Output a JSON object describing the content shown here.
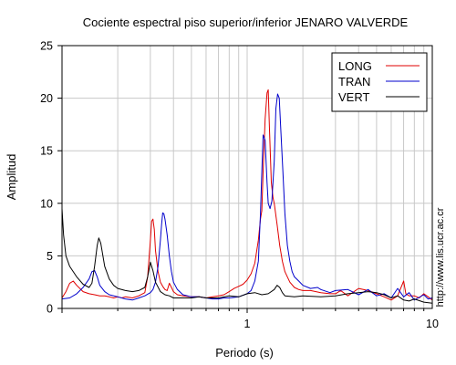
{
  "chart_data": {
    "type": "line",
    "title": "Cociente espectral piso superior/inferior  JENARO VALVERDE",
    "xlabel": "Periodo (s)",
    "ylabel": "Amplitud",
    "xscale": "log",
    "xlim": [
      0.1,
      10
    ],
    "ylim": [
      0,
      25
    ],
    "grid": true,
    "legend_position": "top-right",
    "x_tick_labels": [
      {
        "value": 1,
        "label": "1"
      },
      {
        "value": 10,
        "label": "10"
      }
    ],
    "y_tick_labels": [
      {
        "value": 0,
        "label": "0"
      },
      {
        "value": 5,
        "label": "5"
      },
      {
        "value": 10,
        "label": "10"
      },
      {
        "value": 15,
        "label": "15"
      },
      {
        "value": 20,
        "label": "20"
      },
      {
        "value": 25,
        "label": "25"
      }
    ],
    "series": [
      {
        "name": "LONG",
        "color": "#e00000",
        "points": [
          [
            0.1,
            1.0
          ],
          [
            0.105,
            1.6
          ],
          [
            0.11,
            2.4
          ],
          [
            0.115,
            2.6
          ],
          [
            0.12,
            2.2
          ],
          [
            0.13,
            1.6
          ],
          [
            0.14,
            1.4
          ],
          [
            0.15,
            1.3
          ],
          [
            0.16,
            1.2
          ],
          [
            0.17,
            1.2
          ],
          [
            0.18,
            1.1
          ],
          [
            0.19,
            1.0
          ],
          [
            0.2,
            1.1
          ],
          [
            0.21,
            1.0
          ],
          [
            0.22,
            1.1
          ],
          [
            0.24,
            1.0
          ],
          [
            0.26,
            1.2
          ],
          [
            0.28,
            1.5
          ],
          [
            0.29,
            3.0
          ],
          [
            0.3,
            6.5
          ],
          [
            0.305,
            8.3
          ],
          [
            0.31,
            8.5
          ],
          [
            0.315,
            7.5
          ],
          [
            0.32,
            5.5
          ],
          [
            0.33,
            3.5
          ],
          [
            0.34,
            2.5
          ],
          [
            0.35,
            2.1
          ],
          [
            0.36,
            1.8
          ],
          [
            0.37,
            1.7
          ],
          [
            0.38,
            2.4
          ],
          [
            0.39,
            2.0
          ],
          [
            0.4,
            1.6
          ],
          [
            0.42,
            1.3
          ],
          [
            0.45,
            1.2
          ],
          [
            0.5,
            1.1
          ],
          [
            0.55,
            1.1
          ],
          [
            0.6,
            1.0
          ],
          [
            0.65,
            1.1
          ],
          [
            0.7,
            1.2
          ],
          [
            0.75,
            1.3
          ],
          [
            0.8,
            1.6
          ],
          [
            0.85,
            1.9
          ],
          [
            0.9,
            2.1
          ],
          [
            0.95,
            2.3
          ],
          [
            1.0,
            2.7
          ],
          [
            1.05,
            3.3
          ],
          [
            1.1,
            4.3
          ],
          [
            1.15,
            6.5
          ],
          [
            1.18,
            8.5
          ],
          [
            1.2,
            9.3
          ],
          [
            1.22,
            13.0
          ],
          [
            1.25,
            18.0
          ],
          [
            1.28,
            20.5
          ],
          [
            1.3,
            20.8
          ],
          [
            1.32,
            17.0
          ],
          [
            1.35,
            12.0
          ],
          [
            1.38,
            10.5
          ],
          [
            1.4,
            10.0
          ],
          [
            1.45,
            8.0
          ],
          [
            1.5,
            6.0
          ],
          [
            1.55,
            4.5
          ],
          [
            1.6,
            3.5
          ],
          [
            1.7,
            2.5
          ],
          [
            1.8,
            2.0
          ],
          [
            1.9,
            1.8
          ],
          [
            2.0,
            1.7
          ],
          [
            2.2,
            1.7
          ],
          [
            2.5,
            1.5
          ],
          [
            2.8,
            1.4
          ],
          [
            3.0,
            1.4
          ],
          [
            3.2,
            1.7
          ],
          [
            3.5,
            1.2
          ],
          [
            4.0,
            1.9
          ],
          [
            4.5,
            1.7
          ],
          [
            5.0,
            1.4
          ],
          [
            5.5,
            1.1
          ],
          [
            6.0,
            0.8
          ],
          [
            6.5,
            1.2
          ],
          [
            7.0,
            2.6
          ],
          [
            7.2,
            1.4
          ],
          [
            7.5,
            1.2
          ],
          [
            8.0,
            1.2
          ],
          [
            8.5,
            1.0
          ],
          [
            9.0,
            1.4
          ],
          [
            9.5,
            1.1
          ],
          [
            10.0,
            0.8
          ]
        ]
      },
      {
        "name": "TRAN",
        "color": "#0000cc",
        "points": [
          [
            0.1,
            0.9
          ],
          [
            0.11,
            1.0
          ],
          [
            0.12,
            1.4
          ],
          [
            0.13,
            2.0
          ],
          [
            0.14,
            2.8
          ],
          [
            0.145,
            3.5
          ],
          [
            0.15,
            3.6
          ],
          [
            0.155,
            3.0
          ],
          [
            0.16,
            2.2
          ],
          [
            0.17,
            1.6
          ],
          [
            0.18,
            1.3
          ],
          [
            0.2,
            1.1
          ],
          [
            0.22,
            0.9
          ],
          [
            0.24,
            0.8
          ],
          [
            0.26,
            1.0
          ],
          [
            0.28,
            1.2
          ],
          [
            0.3,
            1.5
          ],
          [
            0.31,
            1.8
          ],
          [
            0.32,
            2.5
          ],
          [
            0.33,
            4.0
          ],
          [
            0.34,
            6.5
          ],
          [
            0.345,
            8.0
          ],
          [
            0.35,
            9.1
          ],
          [
            0.355,
            9.0
          ],
          [
            0.36,
            8.5
          ],
          [
            0.37,
            7.0
          ],
          [
            0.38,
            5.0
          ],
          [
            0.39,
            3.5
          ],
          [
            0.4,
            2.5
          ],
          [
            0.42,
            1.8
          ],
          [
            0.45,
            1.3
          ],
          [
            0.5,
            1.1
          ],
          [
            0.55,
            1.1
          ],
          [
            0.6,
            1.0
          ],
          [
            0.65,
            0.9
          ],
          [
            0.7,
            0.9
          ],
          [
            0.75,
            1.0
          ],
          [
            0.8,
            1.0
          ],
          [
            0.9,
            1.1
          ],
          [
            1.0,
            1.4
          ],
          [
            1.05,
            1.7
          ],
          [
            1.1,
            2.6
          ],
          [
            1.15,
            4.5
          ],
          [
            1.18,
            9.0
          ],
          [
            1.2,
            13.0
          ],
          [
            1.22,
            16.5
          ],
          [
            1.25,
            16.0
          ],
          [
            1.28,
            12.0
          ],
          [
            1.3,
            10.0
          ],
          [
            1.33,
            9.5
          ],
          [
            1.36,
            10.2
          ],
          [
            1.4,
            14.0
          ],
          [
            1.43,
            19.0
          ],
          [
            1.46,
            20.4
          ],
          [
            1.49,
            20.0
          ],
          [
            1.52,
            17.0
          ],
          [
            1.56,
            13.0
          ],
          [
            1.6,
            9.0
          ],
          [
            1.65,
            6.0
          ],
          [
            1.7,
            4.5
          ],
          [
            1.75,
            3.5
          ],
          [
            1.8,
            3.0
          ],
          [
            1.9,
            2.6
          ],
          [
            2.0,
            2.2
          ],
          [
            2.2,
            1.9
          ],
          [
            2.4,
            2.0
          ],
          [
            2.5,
            1.8
          ],
          [
            2.8,
            1.5
          ],
          [
            3.0,
            1.7
          ],
          [
            3.5,
            1.8
          ],
          [
            4.0,
            1.3
          ],
          [
            4.5,
            1.8
          ],
          [
            5.0,
            1.2
          ],
          [
            5.5,
            1.4
          ],
          [
            6.0,
            1.0
          ],
          [
            6.5,
            1.9
          ],
          [
            7.0,
            1.1
          ],
          [
            7.5,
            1.5
          ],
          [
            8.0,
            0.8
          ],
          [
            9.0,
            1.3
          ],
          [
            9.5,
            0.9
          ],
          [
            10.0,
            1.0
          ]
        ]
      },
      {
        "name": "VERT",
        "color": "#000000",
        "points": [
          [
            0.1,
            9.5
          ],
          [
            0.102,
            7.0
          ],
          [
            0.105,
            5.0
          ],
          [
            0.11,
            4.0
          ],
          [
            0.12,
            3.0
          ],
          [
            0.13,
            2.3
          ],
          [
            0.14,
            2.0
          ],
          [
            0.145,
            2.4
          ],
          [
            0.15,
            4.0
          ],
          [
            0.155,
            6.0
          ],
          [
            0.158,
            6.7
          ],
          [
            0.162,
            6.2
          ],
          [
            0.17,
            4.0
          ],
          [
            0.18,
            2.8
          ],
          [
            0.19,
            2.2
          ],
          [
            0.2,
            1.9
          ],
          [
            0.22,
            1.7
          ],
          [
            0.24,
            1.6
          ],
          [
            0.26,
            1.7
          ],
          [
            0.28,
            2.0
          ],
          [
            0.29,
            3.0
          ],
          [
            0.3,
            4.4
          ],
          [
            0.31,
            3.6
          ],
          [
            0.32,
            2.5
          ],
          [
            0.34,
            1.6
          ],
          [
            0.36,
            1.3
          ],
          [
            0.38,
            1.2
          ],
          [
            0.4,
            1.0
          ],
          [
            0.45,
            1.0
          ],
          [
            0.5,
            1.0
          ],
          [
            0.55,
            1.1
          ],
          [
            0.6,
            1.0
          ],
          [
            0.7,
            1.0
          ],
          [
            0.8,
            1.2
          ],
          [
            0.9,
            1.1
          ],
          [
            1.0,
            1.4
          ],
          [
            1.1,
            1.5
          ],
          [
            1.2,
            1.3
          ],
          [
            1.3,
            1.4
          ],
          [
            1.4,
            1.8
          ],
          [
            1.45,
            2.2
          ],
          [
            1.5,
            2.0
          ],
          [
            1.55,
            1.5
          ],
          [
            1.6,
            1.2
          ],
          [
            1.8,
            1.1
          ],
          [
            2.0,
            1.2
          ],
          [
            2.5,
            1.1
          ],
          [
            3.0,
            1.2
          ],
          [
            3.5,
            1.4
          ],
          [
            4.0,
            1.5
          ],
          [
            4.5,
            1.6
          ],
          [
            5.0,
            1.5
          ],
          [
            5.5,
            1.3
          ],
          [
            6.0,
            1.0
          ],
          [
            6.5,
            1.2
          ],
          [
            7.0,
            0.8
          ],
          [
            7.5,
            0.7
          ],
          [
            8.0,
            0.9
          ],
          [
            9.0,
            0.6
          ],
          [
            10.0,
            0.5
          ]
        ]
      }
    ]
  },
  "credit": "http://www.lis.ucr.ac.cr"
}
